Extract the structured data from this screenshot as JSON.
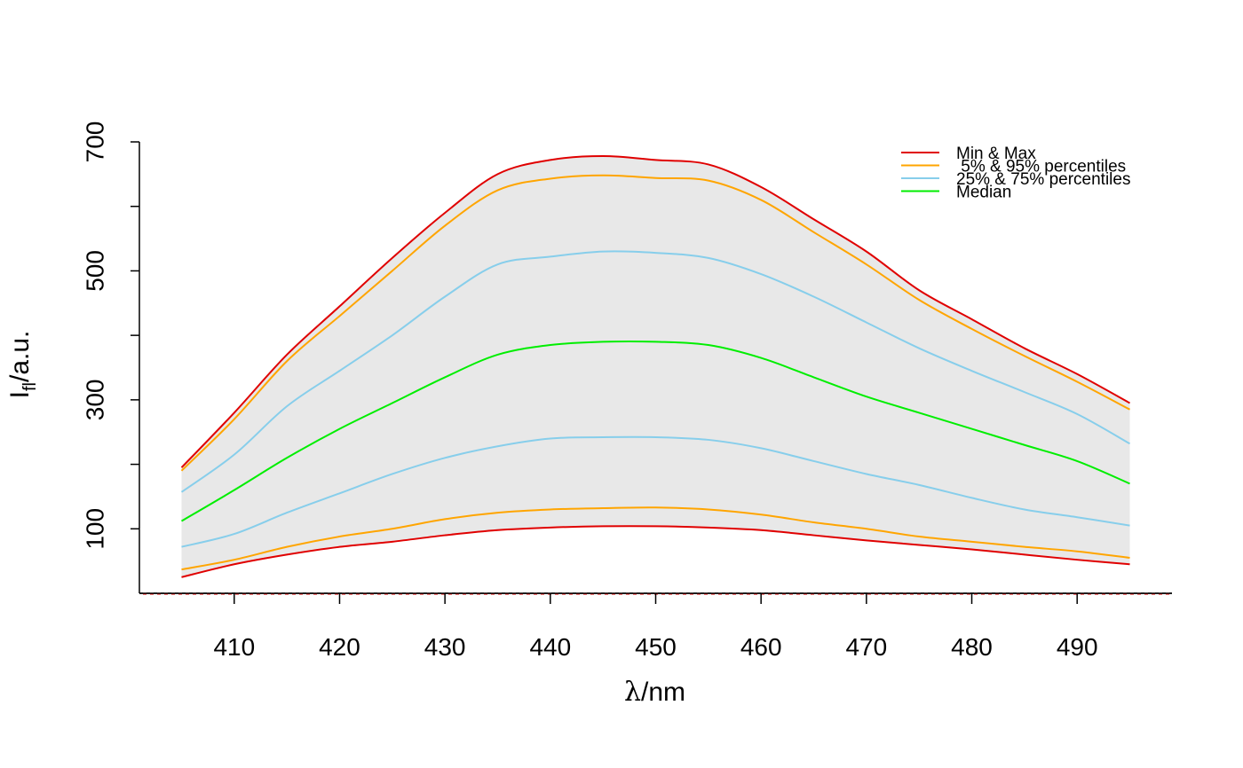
{
  "chart_data": {
    "type": "area",
    "xlabel": {
      "prefix": "λ",
      "suffix": "/nm"
    },
    "ylabel": {
      "main": "I",
      "sub": "fl",
      "suffix": "/a.u."
    },
    "xlim": [
      401,
      499
    ],
    "ylim": [
      0,
      700
    ],
    "xticks": [
      410,
      420,
      430,
      440,
      450,
      460,
      470,
      480,
      490
    ],
    "yticks": [
      100,
      300,
      500,
      700
    ],
    "ytick_minor": [
      200,
      400,
      600
    ],
    "grid": false,
    "legend_position": "top-right",
    "baseline_dashed": true,
    "band_fill": "#e8e8e8",
    "x": [
      405,
      410,
      415,
      420,
      425,
      430,
      435,
      440,
      445,
      450,
      455,
      460,
      465,
      470,
      475,
      480,
      485,
      490,
      495
    ],
    "series": [
      {
        "name": "Min & Max",
        "color": "#e00000",
        "values": [
          195,
          280,
          370,
          445,
          520,
          590,
          650,
          672,
          678,
          672,
          665,
          630,
          580,
          530,
          470,
          425,
          380,
          340,
          295
        ]
      },
      {
        "name": "5% & 95% percentiles",
        "color": "#ffa500",
        "values": [
          190,
          270,
          360,
          430,
          500,
          570,
          625,
          643,
          648,
          644,
          640,
          610,
          560,
          510,
          455,
          410,
          368,
          328,
          285
        ]
      },
      {
        "name": "25% & 75% percentiles",
        "color": "#87ceeb",
        "values": [
          157,
          215,
          290,
          345,
          400,
          460,
          510,
          522,
          530,
          528,
          520,
          495,
          460,
          420,
          380,
          345,
          312,
          278,
          232
        ]
      },
      {
        "name": "Median",
        "color": "#00ee00",
        "values": [
          112,
          160,
          210,
          255,
          295,
          335,
          370,
          385,
          390,
          390,
          385,
          365,
          335,
          305,
          280,
          255,
          230,
          205,
          170
        ]
      },
      {
        "name": "25% & 75% percentiles",
        "color": "#87ceeb",
        "values": [
          72,
          92,
          125,
          155,
          185,
          210,
          228,
          240,
          242,
          242,
          238,
          225,
          205,
          185,
          168,
          148,
          130,
          118,
          105
        ]
      },
      {
        "name": "5% & 95% percentiles",
        "color": "#ffa500",
        "values": [
          37,
          52,
          72,
          88,
          100,
          115,
          125,
          130,
          132,
          133,
          130,
          122,
          110,
          100,
          88,
          80,
          72,
          65,
          55
        ]
      },
      {
        "name": "Min & Max",
        "color": "#e00000",
        "values": [
          25,
          45,
          60,
          72,
          80,
          90,
          98,
          102,
          104,
          104,
          102,
          98,
          90,
          82,
          75,
          68,
          60,
          52,
          45
        ]
      }
    ],
    "legend": [
      {
        "label": "Min & Max",
        "color": "#e00000"
      },
      {
        "label": " 5% & 95% percentiles",
        "color": "#ffa500"
      },
      {
        "label": "25% & 75% percentiles",
        "color": "#87ceeb"
      },
      {
        "label": "Median",
        "color": "#00ee00"
      }
    ]
  }
}
